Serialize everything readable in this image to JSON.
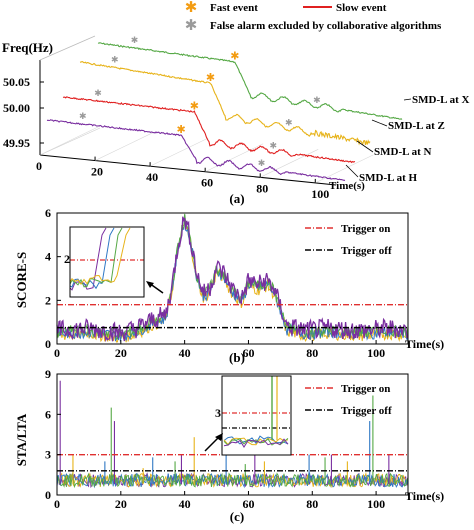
{
  "figure": {
    "panel_a_caption": "(a)",
    "panel_b_caption": "(b)",
    "panel_c_caption": "(c)"
  },
  "colors": {
    "fast_event": "#f39c12",
    "slow_event": "#e02020",
    "false_alarm": "#9a9a9a",
    "trigger_on": "#e03030",
    "trigger_off": "#000000",
    "series_yellow": "#e7b31a",
    "series_purple": "#7a2fa0",
    "series_blue": "#2f78c4",
    "series_green": "#55a845",
    "series_red": "#e02020"
  },
  "chart_data": [
    {
      "type": "line",
      "panel": "a",
      "ylabel": "Freq(Hz)",
      "xlabel": "Time(s)",
      "y_ticks": [
        "50.05",
        "50.00",
        "49.95"
      ],
      "x_ticks": [
        "0",
        "20",
        "40",
        "60",
        "80",
        "100"
      ],
      "xlim": [
        0,
        100
      ],
      "legend": {
        "fast": "Fast event",
        "slow": "Slow event",
        "false_alarm": "False alarm excluded by collaborative algorithms"
      },
      "series": [
        {
          "name": "SMD-L at X",
          "color": "#55a845"
        },
        {
          "name": "SMD-L at Z",
          "color": "#e7b31a"
        },
        {
          "name": "SMD-L at N",
          "color": "#e02020"
        },
        {
          "name": "SMD-L at H",
          "color": "#7a2fa0"
        }
      ],
      "event_time_s": 38
    },
    {
      "type": "line",
      "panel": "b",
      "ylabel": "SCORE-S",
      "xlabel": "Time(s)",
      "xlim": [
        0,
        110
      ],
      "ylim": [
        0,
        6
      ],
      "x_ticks": [
        "0",
        "20",
        "40",
        "60",
        "80",
        "100"
      ],
      "y_ticks": [
        "0",
        "2",
        "4",
        "6"
      ],
      "trigger_on": 1.8,
      "trigger_off": 0.75,
      "legend": {
        "on": "Trigger on",
        "off": "Trigger off"
      },
      "inset_tick": "2",
      "envelope": [
        [
          0,
          0.5
        ],
        [
          10,
          0.6
        ],
        [
          20,
          0.4
        ],
        [
          25,
          0.6
        ],
        [
          30,
          1.0
        ],
        [
          34,
          1.2
        ],
        [
          36,
          2.5
        ],
        [
          38,
          4.5
        ],
        [
          40,
          5.7
        ],
        [
          42,
          4.6
        ],
        [
          44,
          3.0
        ],
        [
          46,
          2.2
        ],
        [
          48,
          2.5
        ],
        [
          50,
          3.4
        ],
        [
          52,
          3.2
        ],
        [
          55,
          2.4
        ],
        [
          58,
          2.0
        ],
        [
          60,
          2.8
        ],
        [
          63,
          2.6
        ],
        [
          66,
          2.8
        ],
        [
          68,
          2.4
        ],
        [
          70,
          1.6
        ],
        [
          72,
          0.7
        ],
        [
          78,
          0.5
        ],
        [
          85,
          0.6
        ],
        [
          95,
          0.5
        ],
        [
          105,
          0.6
        ],
        [
          110,
          0.5
        ]
      ]
    },
    {
      "type": "line",
      "panel": "c",
      "ylabel": "STA/LTA",
      "xlabel": "Time(s)",
      "xlim": [
        0,
        110
      ],
      "ylim": [
        0,
        9
      ],
      "x_ticks": [
        "0",
        "20",
        "40",
        "60",
        "80",
        "100"
      ],
      "y_ticks": [
        "0",
        "3",
        "6",
        "9"
      ],
      "trigger_on": 3.0,
      "trigger_off": 1.8,
      "legend": {
        "on": "Trigger on",
        "off": "Trigger off"
      },
      "inset_tick": "3",
      "spikes": [
        [
          1,
          8.5
        ],
        [
          5,
          3.0
        ],
        [
          15,
          2.5
        ],
        [
          17,
          6.5
        ],
        [
          18,
          5.5
        ],
        [
          27,
          2.0
        ],
        [
          30,
          2.8
        ],
        [
          37,
          2.5
        ],
        [
          39,
          3.0
        ],
        [
          43,
          4.3
        ],
        [
          53,
          3.0
        ],
        [
          59,
          2.3
        ],
        [
          62,
          3.5
        ],
        [
          65,
          2.5
        ],
        [
          79,
          3.0
        ],
        [
          84,
          2.8
        ],
        [
          86,
          3.0
        ],
        [
          91,
          2.5
        ],
        [
          98,
          5.5
        ],
        [
          99,
          7.4
        ],
        [
          104,
          3.0
        ]
      ]
    }
  ]
}
